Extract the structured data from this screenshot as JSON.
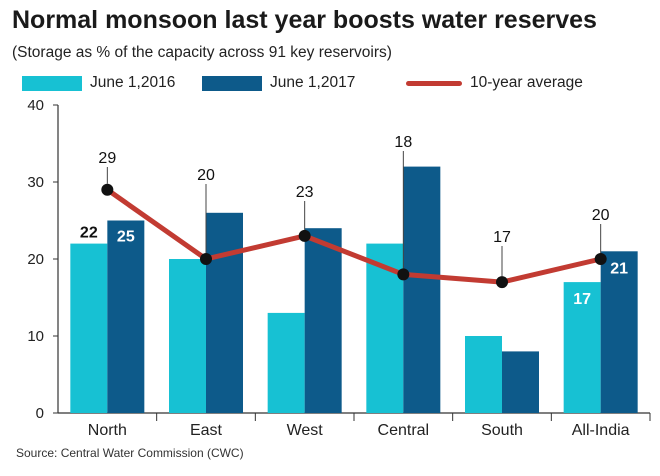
{
  "header": {
    "title": "Normal monsoon last year boosts water reserves",
    "subtitle": "(Storage as % of the capacity across 91 key reservoirs)",
    "source": "Source: Central Water Commission (CWC)"
  },
  "colors": {
    "june_2016": "#17c1d3",
    "june_2017": "#0d5a8a",
    "avg_line": "#c23b32",
    "avg_marker": "#111111"
  },
  "chart_data": {
    "type": "bar",
    "categories": [
      "North",
      "East",
      "West",
      "Central",
      "South",
      "All-India"
    ],
    "series": [
      {
        "name": "June 1,2016",
        "type": "bar",
        "values": [
          22,
          20,
          13,
          22,
          10,
          17
        ],
        "labels": [
          "22",
          "",
          "",
          "",
          "",
          "17"
        ]
      },
      {
        "name": "June 1,2017",
        "type": "bar",
        "values": [
          25,
          26,
          24,
          32,
          8,
          21
        ],
        "labels": [
          "25",
          "",
          "",
          "",
          "",
          "21"
        ]
      },
      {
        "name": "10-year average",
        "type": "line",
        "values": [
          29,
          20,
          23,
          18,
          17,
          20
        ],
        "labels": [
          "29",
          "20",
          "23",
          "18",
          "17",
          "20"
        ]
      }
    ],
    "ylim": [
      0,
      40
    ],
    "yticks": [
      0,
      10,
      20,
      30,
      40
    ],
    "grid": false,
    "legend_position": "top"
  }
}
